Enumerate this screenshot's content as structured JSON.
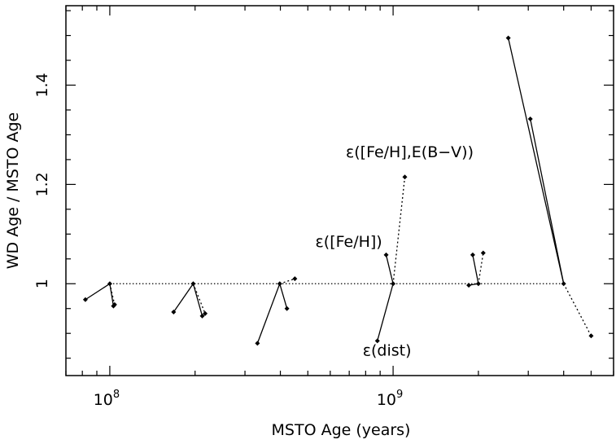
{
  "chart_data": {
    "type": "line",
    "xlabel": "MSTO Age (years)",
    "ylabel": "WD Age / MSTO Age",
    "xscale": "log",
    "xlim": [
      70000000,
      6000000000
    ],
    "ylim": [
      0.815,
      1.56
    ],
    "x_ticks": [
      {
        "base": "10",
        "exp": "8",
        "value": 100000000
      },
      {
        "base": "10",
        "exp": "9",
        "value": 1000000000
      }
    ],
    "y_ticks": [
      {
        "label": "1",
        "value": 1.0
      },
      {
        "label": "1.2",
        "value": 1.2
      },
      {
        "label": "1.4",
        "value": 1.4
      }
    ],
    "reference_line": {
      "y": 1.0,
      "style": "dotted"
    },
    "clusters": [
      {
        "center": [
          100000000,
          1.0
        ],
        "solid": [
          [
            82000000,
            0.968
          ],
          [
            103000000,
            0.955
          ]
        ],
        "dotted": [
          [
            104000000,
            0.958
          ]
        ]
      },
      {
        "center": [
          197000000,
          1.0
        ],
        "solid": [
          [
            168000000,
            0.943
          ],
          [
            212000000,
            0.935
          ]
        ],
        "dotted": [
          [
            217000000,
            0.94
          ]
        ]
      },
      {
        "center": [
          398000000,
          1.0
        ],
        "solid": [
          [
            332000000,
            0.88
          ],
          [
            422000000,
            0.95
          ]
        ],
        "dotted": [
          [
            450000000,
            1.01
          ]
        ]
      },
      {
        "center": [
          1000000000,
          1.0
        ],
        "solid": [
          [
            880000000,
            0.885
          ],
          [
            945000000,
            1.058
          ]
        ],
        "dotted": [
          [
            1100000000,
            1.215
          ]
        ]
      },
      {
        "center": [
          2000000000,
          1.0
        ],
        "solid": [
          [
            1850000000,
            0.997
          ],
          [
            1910000000,
            1.058
          ]
        ],
        "dotted": [
          [
            2080000000,
            1.062
          ]
        ]
      },
      {
        "center": [
          4000000000,
          1.0
        ],
        "solid": [
          [
            2550000000,
            1.495
          ],
          [
            3050000000,
            1.332
          ]
        ],
        "dotted": [
          [
            5000000000,
            0.895
          ]
        ]
      }
    ],
    "annotations": [
      {
        "parts": [
          "ε",
          "([Fe/H],E(B−V))"
        ],
        "anchor": [
          1100000000,
          1.245
        ]
      },
      {
        "parts": [
          "ε",
          "([Fe/H])"
        ],
        "anchor": [
          940000000,
          1.068
        ]
      },
      {
        "parts": [
          "ε",
          "(dist)"
        ],
        "anchor": [
          880000000,
          0.885
        ]
      }
    ],
    "grid": false,
    "legend": "none"
  }
}
